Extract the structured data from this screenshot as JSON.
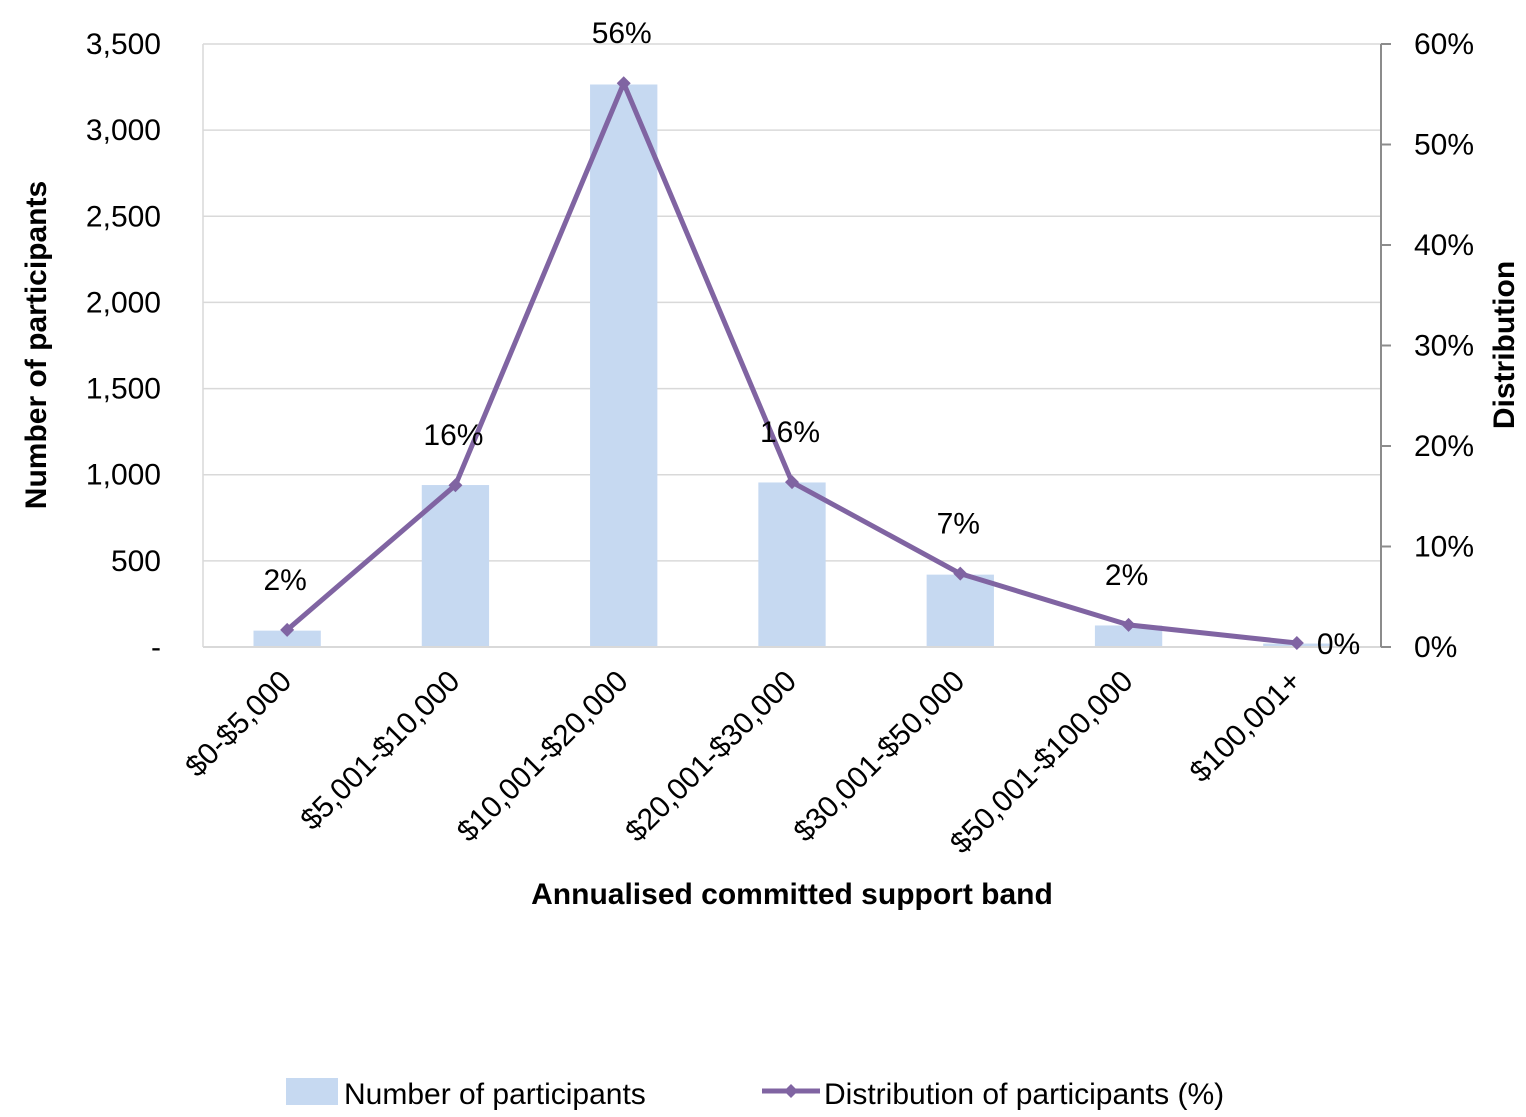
{
  "chart_data": {
    "type": "bar",
    "categories": [
      "$0-$5,000",
      "$5,001-$10,000",
      "$10,001-$20,000",
      "$20,001-$30,000",
      "$30,001-$50,000",
      "$50,001-$100,000",
      "$100,001+"
    ],
    "xlabel": "Annualised committed support band",
    "ylabel": "Number of participants",
    "y2label": "Distribution",
    "ylim": [
      0,
      3500
    ],
    "y2lim": [
      0,
      0.6
    ],
    "y_ticks": [
      "-",
      "500",
      "1,000",
      "1,500",
      "2,000",
      "2,500",
      "3,000",
      "3,500"
    ],
    "y2_ticks": [
      "0%",
      "10%",
      "20%",
      "30%",
      "40%",
      "50%",
      "60%"
    ],
    "series": [
      {
        "name": "Number of participants",
        "type": "bar",
        "axis": "left",
        "color": "#c6d9f1",
        "values": [
          95,
          940,
          3265,
          955,
          420,
          125,
          20
        ]
      },
      {
        "name": "Distribution of participants (%)",
        "type": "line",
        "axis": "right",
        "color": "#8064a2",
        "marker": "diamond",
        "values": [
          0.017,
          0.161,
          0.561,
          0.164,
          0.073,
          0.022,
          0.004
        ],
        "data_labels": [
          "2%",
          "16%",
          "56%",
          "16%",
          "7%",
          "2%",
          "0%"
        ]
      }
    ],
    "gridlines": true,
    "legend_position": "bottom"
  }
}
